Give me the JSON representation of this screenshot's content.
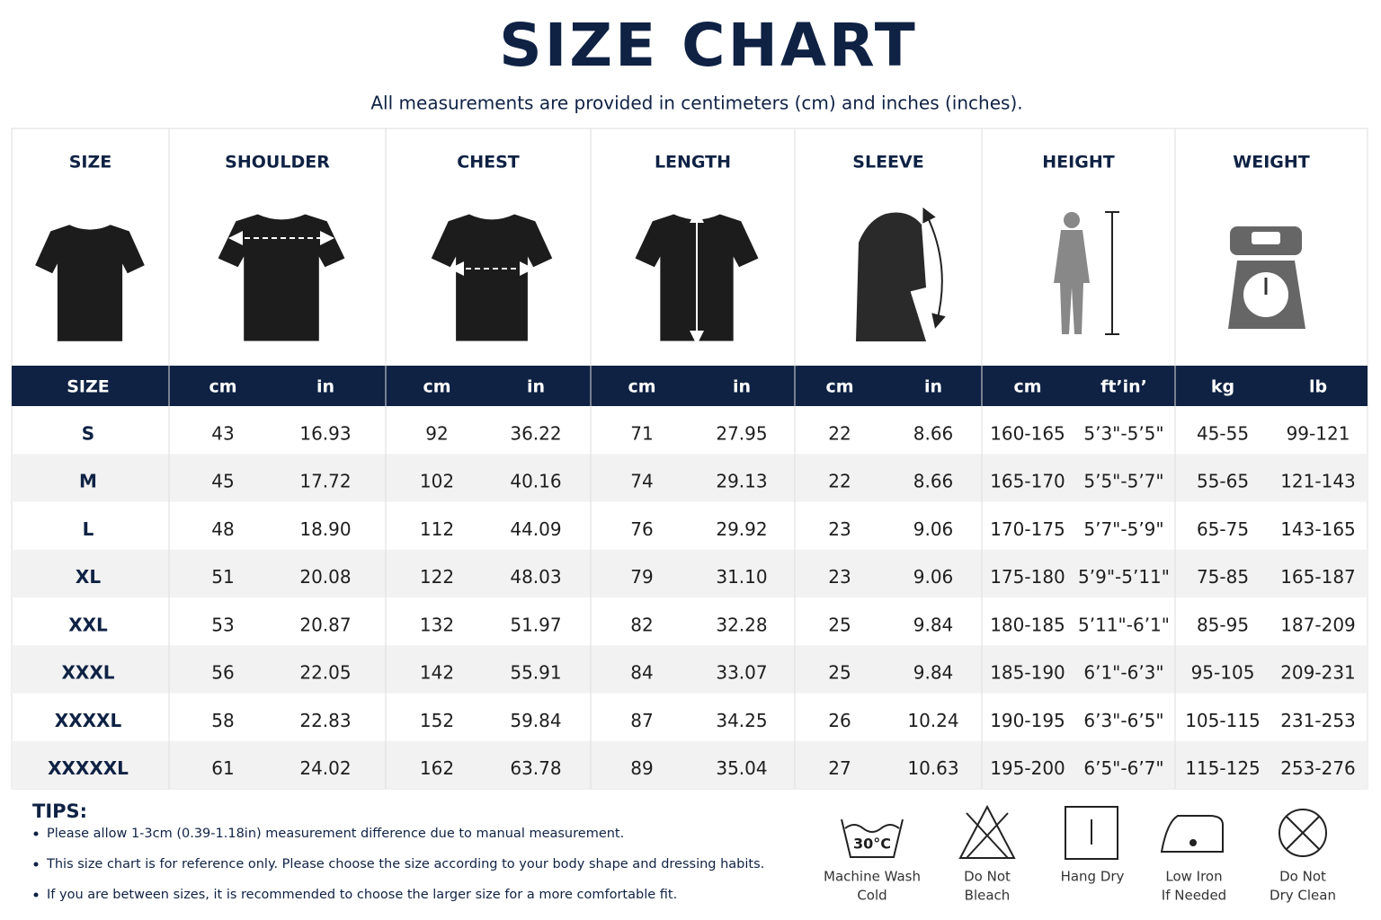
{
  "header": {
    "title": "SIZE CHART",
    "subtitle": "All measurements are provided in centimeters (cm) and inches (inches)."
  },
  "table": {
    "columns": [
      "SIZE",
      "SHOULDER",
      "CHEST",
      "LENGTH",
      "SLEEVE",
      "HEIGHT",
      "WEIGHT"
    ],
    "subheaders": [
      "SIZE",
      "cm",
      "in",
      "cm",
      "in",
      "cm",
      "in",
      "cm",
      "in",
      "cm",
      "ft’in’",
      "kg",
      "lb"
    ],
    "rows": [
      [
        "S",
        "43",
        "16.93",
        "92",
        "36.22",
        "71",
        "27.95",
        "22",
        "8.66",
        "160-165",
        "5’3\"-5’5\"",
        "45-55",
        "99-121"
      ],
      [
        "M",
        "45",
        "17.72",
        "102",
        "40.16",
        "74",
        "29.13",
        "22",
        "8.66",
        "165-170",
        "5’5\"-5’7\"",
        "55-65",
        "121-143"
      ],
      [
        "L",
        "48",
        "18.90",
        "112",
        "44.09",
        "76",
        "29.92",
        "23",
        "9.06",
        "170-175",
        "5’7\"-5’9\"",
        "65-75",
        "143-165"
      ],
      [
        "XL",
        "51",
        "20.08",
        "122",
        "48.03",
        "79",
        "31.10",
        "23",
        "9.06",
        "175-180",
        "5’9\"-5’11\"",
        "75-85",
        "165-187"
      ],
      [
        "XXL",
        "53",
        "20.87",
        "132",
        "51.97",
        "82",
        "32.28",
        "25",
        "9.84",
        "180-185",
        "5’11\"-6’1\"",
        "85-95",
        "187-209"
      ],
      [
        "XXXL",
        "56",
        "22.05",
        "142",
        "55.91",
        "84",
        "33.07",
        "25",
        "9.84",
        "185-190",
        "6’1\"-6’3\"",
        "95-105",
        "209-231"
      ],
      [
        "XXXXL",
        "58",
        "22.83",
        "152",
        "59.84",
        "87",
        "34.25",
        "26",
        "10.24",
        "190-195",
        "6’3\"-6’5\"",
        "105-115",
        "231-253"
      ],
      [
        "XXXXXL",
        "61",
        "24.02",
        "162",
        "63.78",
        "89",
        "35.04",
        "27",
        "10.63",
        "195-200",
        "6’5\"-6’7\"",
        "115-125",
        "253-276"
      ]
    ]
  },
  "tips": {
    "title": "TIPS:",
    "items": [
      "Please allow 1-3cm (0.39-1.18in) measurement difference due to manual measurement.",
      "This size chart is for reference only. Please choose the size according to your body shape and dressing habits.",
      "If you are between sizes, it is recommended to choose the larger size for a more comfortable fit."
    ]
  },
  "care": {
    "wash_temp": "30°C",
    "items": [
      [
        "Machine Wash",
        "Cold"
      ],
      [
        "Do Not",
        "Bleach"
      ],
      [
        "Hang Dry"
      ],
      [
        "Low Iron",
        "If Needed"
      ],
      [
        "Do Not",
        "Dry Clean"
      ]
    ]
  }
}
